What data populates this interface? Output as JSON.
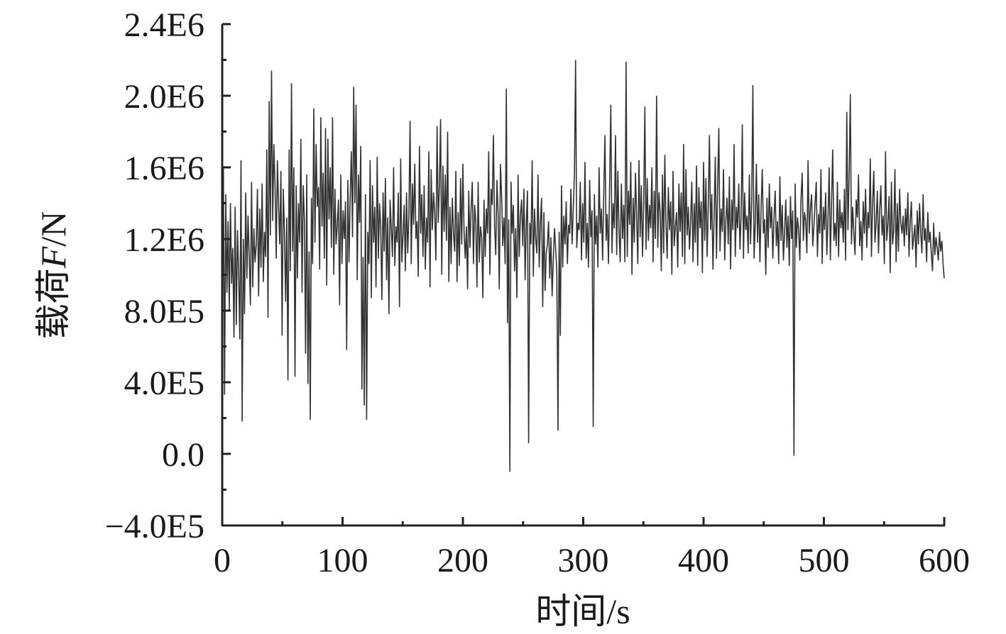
{
  "chart_data": {
    "type": "line",
    "xlabel": "时间/s",
    "ylabel_prefix": "载荷",
    "ylabel_var": "F",
    "ylabel_unit": "/N",
    "xlim": [
      0,
      600
    ],
    "ylim": [
      -400000,
      2400000
    ],
    "x_ticks": [
      "0",
      "100",
      "200",
      "300",
      "400",
      "500",
      "600"
    ],
    "x_tick_values": [
      0,
      100,
      200,
      300,
      400,
      500,
      600
    ],
    "y_ticks": [
      "−4.0E5",
      "0.0",
      "4.0E5",
      "8.0E5",
      "1.2E6",
      "1.6E6",
      "2.0E6",
      "2.4E6"
    ],
    "y_tick_values": [
      -400000,
      0,
      400000,
      800000,
      1200000,
      1600000,
      2000000,
      2400000
    ],
    "grid": false,
    "line_color": "#333333",
    "series": [
      {
        "x_step": 1,
        "values": [
          1200000,
          1600000,
          330000,
          1450000,
          900000,
          1300000,
          800000,
          1400000,
          950000,
          1150000,
          650000,
          1380000,
          720000,
          1250000,
          1020000,
          640000,
          1640000,
          180000,
          1200000,
          780000,
          1460000,
          980000,
          1330000,
          1100000,
          830000,
          1520000,
          930000,
          1260000,
          1070000,
          1170000,
          1480000,
          880000,
          1370000,
          1040000,
          1510000,
          960000,
          1240000,
          1100000,
          1700000,
          760000,
          1970000,
          1220000,
          2140000,
          1300000,
          1730000,
          1500000,
          1090000,
          1640000,
          1390000,
          1170000,
          1580000,
          660000,
          1480000,
          1250000,
          850000,
          1320000,
          410000,
          1700000,
          1020000,
          2070000,
          1130000,
          1600000,
          430000,
          1500000,
          980000,
          1400000,
          1180000,
          1760000,
          900000,
          1500000,
          1310000,
          560000,
          1560000,
          390000,
          1130000,
          190000,
          1430000,
          1060000,
          1930000,
          1180000,
          1730000,
          1380000,
          1490000,
          1030000,
          1880000,
          1270000,
          1570000,
          1090000,
          1820000,
          940000,
          1760000,
          1310000,
          1600000,
          1150000,
          1880000,
          1000000,
          1480000,
          1170000,
          1280000,
          1420000,
          830000,
          1560000,
          1060000,
          1360000,
          1200000,
          1410000,
          580000,
          1530000,
          1070000,
          1440000,
          1690000,
          1210000,
          2050000,
          1400000,
          1950000,
          970000,
          1560000,
          1290000,
          1720000,
          360000,
          1100000,
          270000,
          1450000,
          190000,
          1240000,
          1060000,
          1640000,
          870000,
          1500000,
          1180000,
          1380000,
          930000,
          1660000,
          1090000,
          1400000,
          1270000,
          860000,
          1460000,
          1130000,
          1540000,
          970000,
          1320000,
          780000,
          1420000,
          1260000,
          1100000,
          1600000,
          1050000,
          1270000,
          1180000,
          1460000,
          820000,
          1650000,
          1070000,
          1220000,
          1390000,
          1020000,
          1460000,
          1120000,
          1330000,
          1860000,
          1060000,
          1510000,
          1280000,
          1620000,
          1200000,
          1300000,
          990000,
          1720000,
          1230000,
          1450000,
          1100000,
          1500000,
          1030000,
          1320000,
          1180000,
          1690000,
          930000,
          1590000,
          1250000,
          1460000,
          1350000,
          1080000,
          1830000,
          1290000,
          1500000,
          1870000,
          1000000,
          1610000,
          1240000,
          1560000,
          1190000,
          1800000,
          960000,
          1380000,
          1060000,
          1430000,
          1230000,
          1130000,
          1580000,
          960000,
          1350000,
          1050000,
          1540000,
          1170000,
          1620000,
          1240000,
          1090000,
          1270000,
          920000,
          1470000,
          1150000,
          1370000,
          1520000,
          1060000,
          1390000,
          1300000,
          930000,
          1520000,
          1070000,
          1270000,
          1210000,
          870000,
          1420000,
          1100000,
          1370000,
          1230000,
          1690000,
          1000000,
          1480000,
          1390000,
          1780000,
          1270000,
          1110000,
          1530000,
          1340000,
          920000,
          1620000,
          1440000,
          1160000,
          1320000,
          1060000,
          2040000,
          730000,
          1310000,
          -100000,
          1520000,
          1230000,
          1390000,
          1020000,
          1260000,
          870000,
          1560000,
          1100000,
          1330000,
          1420000,
          1160000,
          1480000,
          970000,
          1290000,
          1470000,
          60000,
          1290000,
          1170000,
          1640000,
          990000,
          1370000,
          1200000,
          1120000,
          1560000,
          1040000,
          1290000,
          1430000,
          820000,
          1350000,
          910000,
          1120000,
          1170000,
          1300000,
          980000,
          1210000,
          880000,
          1080000,
          1260000,
          1150000,
          1010000,
          130000,
          1240000,
          660000,
          1500000,
          1040000,
          1330000,
          1170000,
          1410000,
          1060000,
          1280000,
          1230000,
          1480000,
          1170000,
          1360000,
          1560000,
          2200000,
          1150000,
          1290000,
          1250000,
          1520000,
          1080000,
          1400000,
          1180000,
          1630000,
          1090000,
          1290000,
          1040000,
          1530000,
          1210000,
          1360000,
          150000,
          1450000,
          1170000,
          1330000,
          1040000,
          1600000,
          1230000,
          1370000,
          1080000,
          1460000,
          1780000,
          1190000,
          1340000,
          1060000,
          1510000,
          1950000,
          1120000,
          1400000,
          1260000,
          1780000,
          1110000,
          1580000,
          1240000,
          1070000,
          1510000,
          1200000,
          1390000,
          1070000,
          2190000,
          1100000,
          1470000,
          1280000,
          1630000,
          1000000,
          1430000,
          1180000,
          1570000,
          1320000,
          1060000,
          1640000,
          1210000,
          1500000,
          1100000,
          1390000,
          1940000,
          1140000,
          1540000,
          1190000,
          1390000,
          1260000,
          1600000,
          1070000,
          1470000,
          1200000,
          2000000,
          1150000,
          1460000,
          1350000,
          1020000,
          1560000,
          1120000,
          1670000,
          1280000,
          1090000,
          1490000,
          1250000,
          1410000,
          1000000,
          1580000,
          1160000,
          1270000,
          1350000,
          1040000,
          1510000,
          1240000,
          1460000,
          1100000,
          1730000,
          1060000,
          1590000,
          1220000,
          1380000,
          1140000,
          1300000,
          1520000,
          1070000,
          1400000,
          1180000,
          1610000,
          1050000,
          1490000,
          1260000,
          1410000,
          1010000,
          1630000,
          1190000,
          1540000,
          1100000,
          1380000,
          1780000,
          1250000,
          1450000,
          1030000,
          1330000,
          1660000,
          1090000,
          1500000,
          1820000,
          1130000,
          1370000,
          1240000,
          1590000,
          1080000,
          1300000,
          1430000,
          1170000,
          1550000,
          1030000,
          1420000,
          1250000,
          1730000,
          1100000,
          1380000,
          1260000,
          1510000,
          1140000,
          1330000,
          1840000,
          1090000,
          1460000,
          1250000,
          1330000,
          1120000,
          1560000,
          1170000,
          1400000,
          2060000,
          1090000,
          1280000,
          1620000,
          1180000,
          1450000,
          1070000,
          1370000,
          1590000,
          1230000,
          1310000,
          1000000,
          1430000,
          1150000,
          1510000,
          1260000,
          1380000,
          1090000,
          1320000,
          1470000,
          1160000,
          1300000,
          1060000,
          1550000,
          1190000,
          1390000,
          1080000,
          1230000,
          1420000,
          1150000,
          1330000,
          1050000,
          1440000,
          1200000,
          1360000,
          -10000,
          1510000,
          1150000,
          1320000,
          1250000,
          1080000,
          1420000,
          1570000,
          1190000,
          1350000,
          1300000,
          1120000,
          1640000,
          1230000,
          1370000,
          1450000,
          1160000,
          1270000,
          1400000,
          1520000,
          1100000,
          1340000,
          1230000,
          1590000,
          1060000,
          1380000,
          1250000,
          1460000,
          1110000,
          1310000,
          1600000,
          1080000,
          1400000,
          1700000,
          1190000,
          1290000,
          1160000,
          1520000,
          1100000,
          1420000,
          1260000,
          1350000,
          1180000,
          1480000,
          1080000,
          1910000,
          1250000,
          1550000,
          2010000,
          1170000,
          1380000,
          1240000,
          1110000,
          1420000,
          1320000,
          1560000,
          1160000,
          1300000,
          1080000,
          1410000,
          1230000,
          1480000,
          1150000,
          1350000,
          1260000,
          1650000,
          1100000,
          1400000,
          1580000,
          1180000,
          1290000,
          1470000,
          1120000,
          1360000,
          1500000,
          1220000,
          1330000,
          1060000,
          1690000,
          1190000,
          1280000,
          1440000,
          1010000,
          1520000,
          1170000,
          1250000,
          1590000,
          1070000,
          1400000,
          1130000,
          1480000,
          1290000,
          1230000,
          1330000,
          1160000,
          1370000,
          1220000,
          1460000,
          1100000,
          1300000,
          1410000,
          1140000,
          1210000,
          1280000,
          1040000,
          1360000,
          1170000,
          1400000,
          1230000,
          1120000,
          1450000,
          1190000,
          1260000,
          1070000,
          1350000,
          1180000,
          1240000,
          1120000,
          1020000,
          1290000,
          1110000,
          1210000,
          1150000,
          1080000,
          1240000,
          1130000,
          1190000,
          1060000,
          980000
        ]
      }
    ]
  }
}
